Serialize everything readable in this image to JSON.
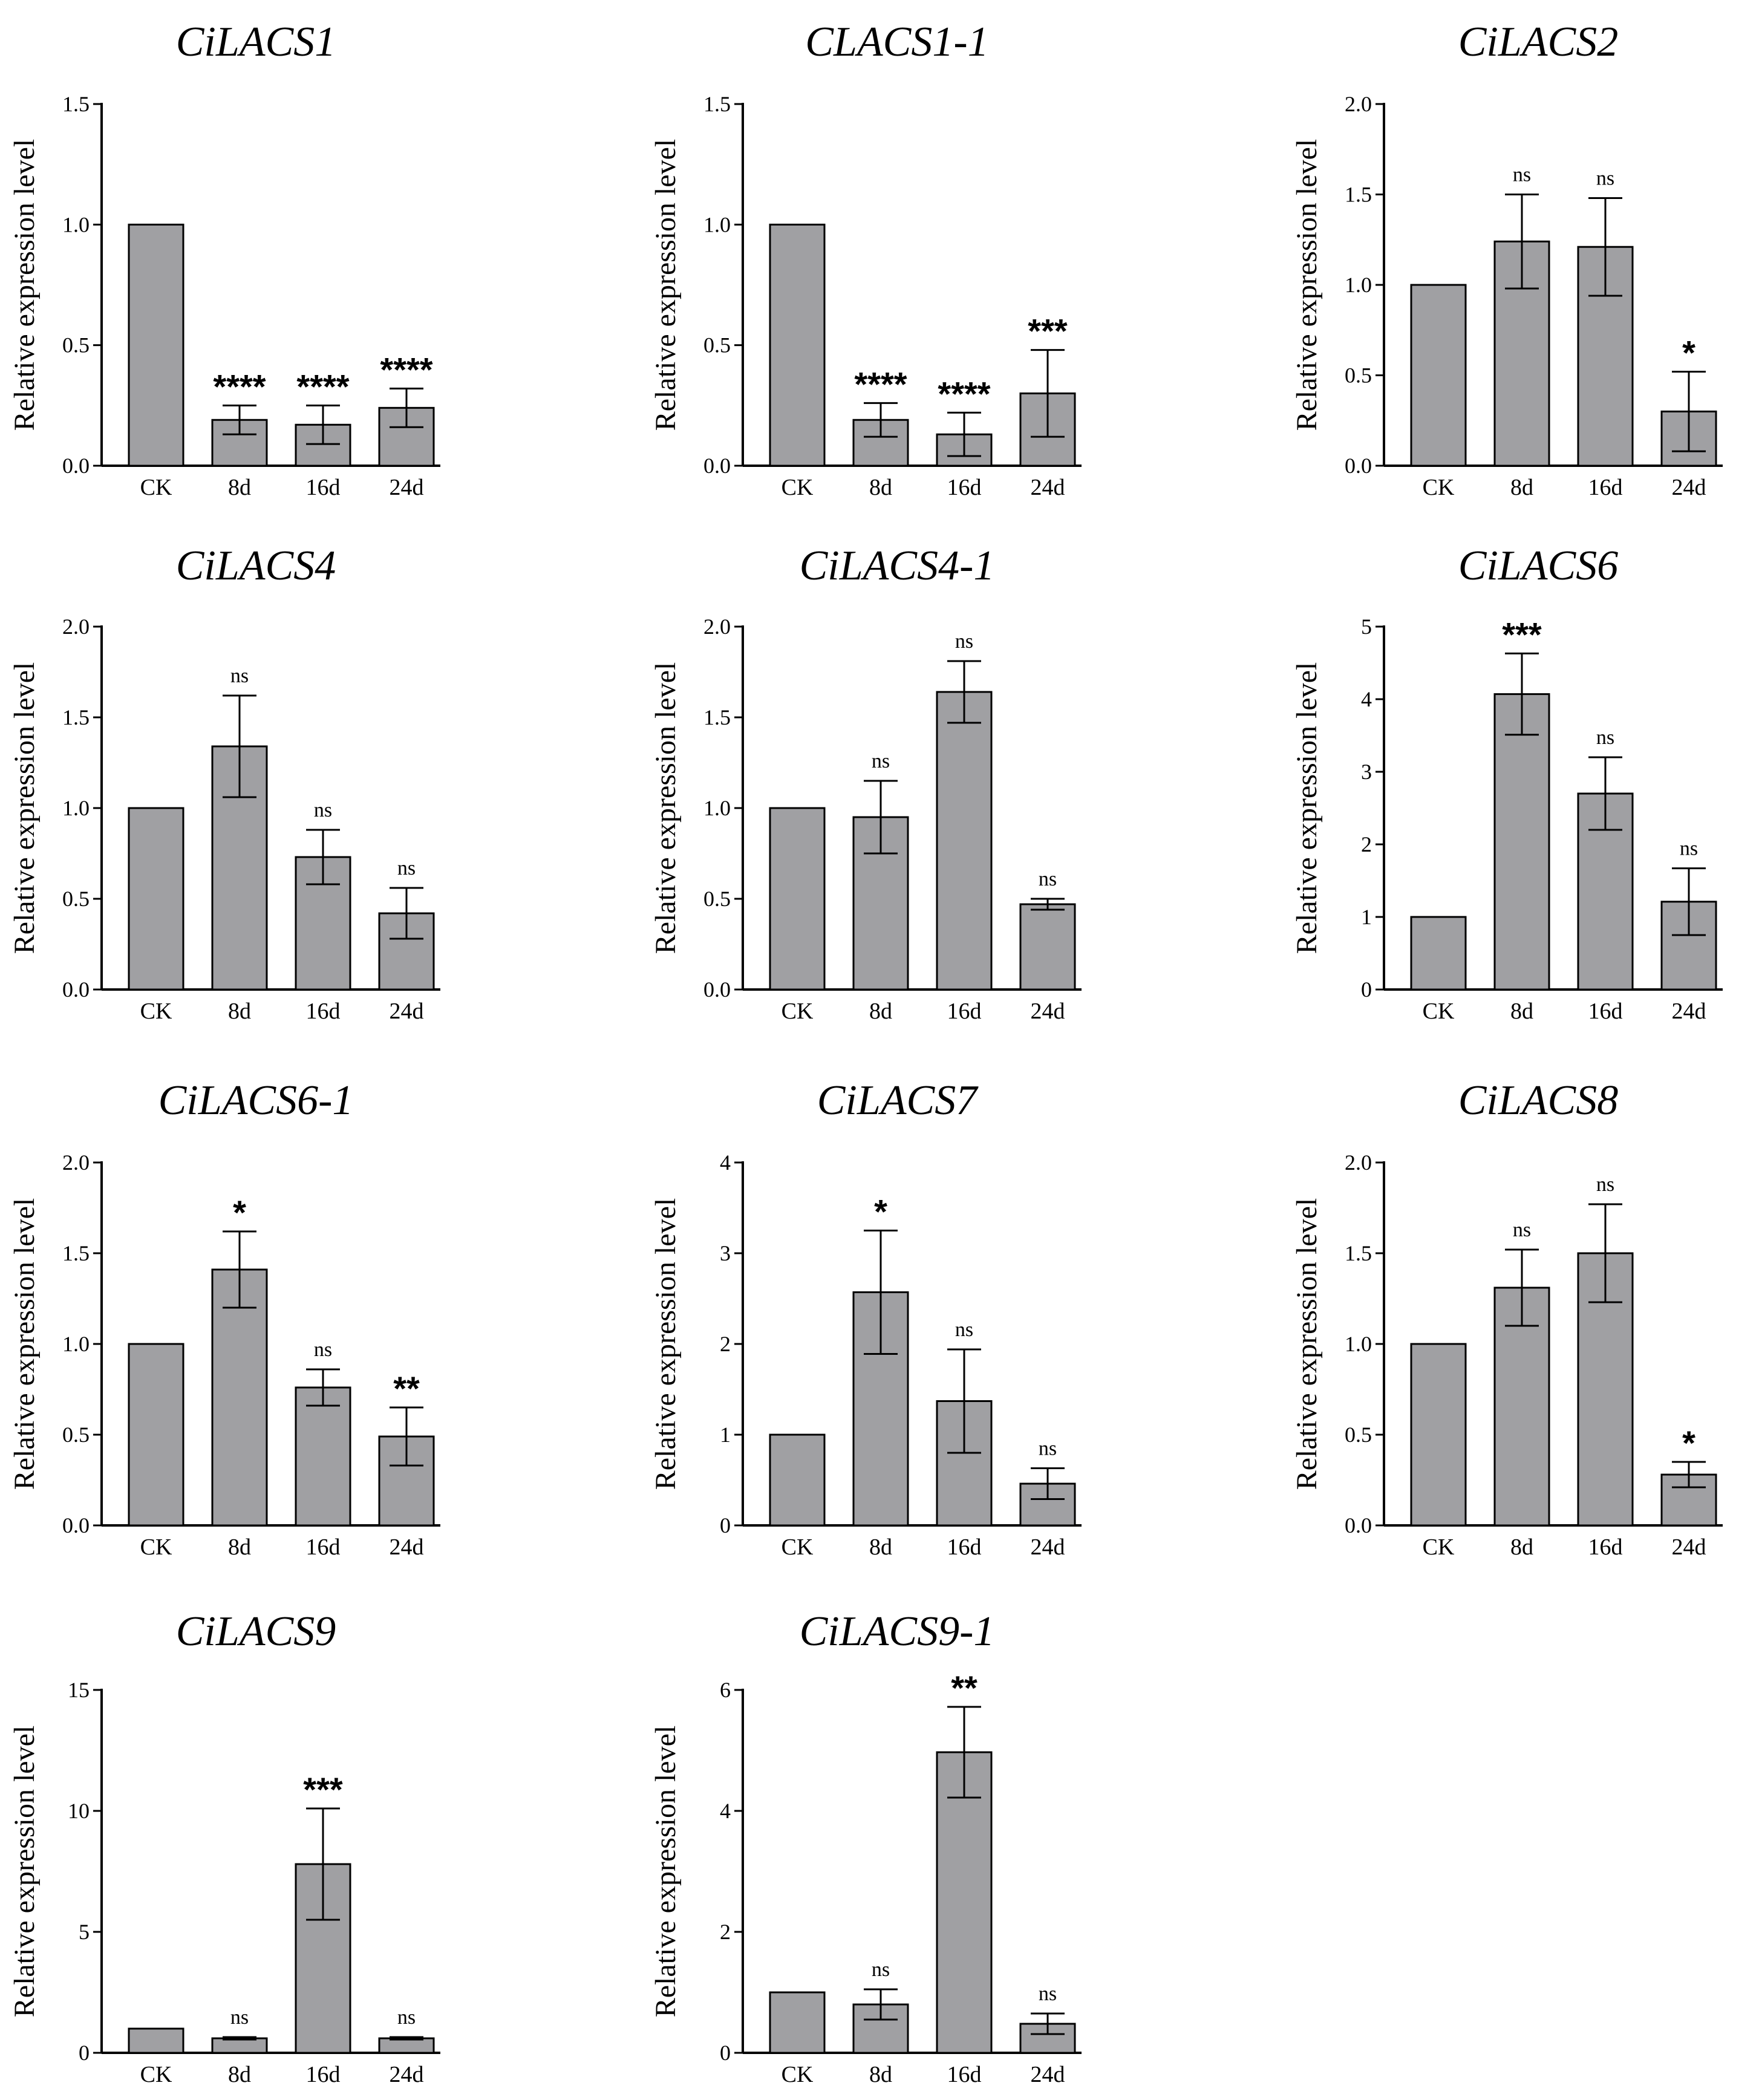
{
  "figure": {
    "ylabel": "Relative expression level"
  },
  "chart_data": [
    {
      "type": "bar",
      "title": "CiLACS1",
      "xlabel": "",
      "ylabel": "Relative expression level",
      "categories": [
        "CK",
        "8d",
        "16d",
        "24d"
      ],
      "values": [
        1.0,
        0.19,
        0.17,
        0.24
      ],
      "errors": [
        0,
        0.06,
        0.08,
        0.08
      ],
      "significance": [
        "",
        "****",
        "****",
        "****"
      ],
      "ylim": [
        0,
        1.5
      ],
      "yticks": [
        0.0,
        0.5,
        1.0,
        1.5
      ],
      "tick_labels": [
        "0.0",
        "0.5",
        "1.0",
        "1.5"
      ]
    },
    {
      "type": "bar",
      "title": "CLACS1-1",
      "xlabel": "",
      "ylabel": "Relative expression level",
      "categories": [
        "CK",
        "8d",
        "16d",
        "24d"
      ],
      "values": [
        1.0,
        0.19,
        0.13,
        0.3
      ],
      "errors": [
        0,
        0.07,
        0.09,
        0.18
      ],
      "significance": [
        "",
        "****",
        "****",
        "***"
      ],
      "ylim": [
        0,
        1.5
      ],
      "yticks": [
        0.0,
        0.5,
        1.0,
        1.5
      ],
      "tick_labels": [
        "0.0",
        "0.5",
        "1.0",
        "1.5"
      ]
    },
    {
      "type": "bar",
      "title": "CiLACS2",
      "xlabel": "",
      "ylabel": "Relative expression level",
      "categories": [
        "CK",
        "8d",
        "16d",
        "24d"
      ],
      "values": [
        1.0,
        1.24,
        1.21,
        0.3
      ],
      "errors": [
        0,
        0.26,
        0.27,
        0.22
      ],
      "significance": [
        "",
        "ns",
        "ns",
        "*"
      ],
      "ylim": [
        0,
        2.0
      ],
      "yticks": [
        0.0,
        0.5,
        1.0,
        1.5,
        2.0
      ],
      "tick_labels": [
        "0.0",
        "0.5",
        "1.0",
        "1.5",
        "2.0"
      ]
    },
    {
      "type": "bar",
      "title": "CiLACS4",
      "xlabel": "",
      "ylabel": "Relative expression level",
      "categories": [
        "CK",
        "8d",
        "16d",
        "24d"
      ],
      "values": [
        1.0,
        1.34,
        0.73,
        0.42
      ],
      "errors": [
        0,
        0.28,
        0.15,
        0.14
      ],
      "significance": [
        "",
        "ns",
        "ns",
        "ns"
      ],
      "ylim": [
        0,
        2.0
      ],
      "yticks": [
        0.0,
        0.5,
        1.0,
        1.5,
        2.0
      ],
      "tick_labels": [
        "0.0",
        "0.5",
        "1.0",
        "1.5",
        "2.0"
      ]
    },
    {
      "type": "bar",
      "title": "CiLACS4-1",
      "xlabel": "",
      "ylabel": "Relative expression level",
      "categories": [
        "CK",
        "8d",
        "16d",
        "24d"
      ],
      "values": [
        1.0,
        0.95,
        1.64,
        0.47
      ],
      "errors": [
        0,
        0.2,
        0.17,
        0.03
      ],
      "significance": [
        "",
        "ns",
        "ns",
        "ns"
      ],
      "ylim": [
        0,
        2.0
      ],
      "yticks": [
        0.0,
        0.5,
        1.0,
        1.5,
        2.0
      ],
      "tick_labels": [
        "0.0",
        "0.5",
        "1.0",
        "1.5",
        "2.0"
      ]
    },
    {
      "type": "bar",
      "title": "CiLACS6",
      "xlabel": "",
      "ylabel": "Relative expression level",
      "categories": [
        "CK",
        "8d",
        "16d",
        "24d"
      ],
      "values": [
        1.0,
        4.07,
        2.7,
        1.21
      ],
      "errors": [
        0,
        0.56,
        0.5,
        0.46
      ],
      "significance": [
        "",
        "***",
        "ns",
        "ns"
      ],
      "ylim": [
        0,
        5
      ],
      "yticks": [
        0,
        1,
        2,
        3,
        4,
        5
      ],
      "tick_labels": [
        "0",
        "1",
        "2",
        "3",
        "4",
        "5"
      ]
    },
    {
      "type": "bar",
      "title": "CiLACS6-1",
      "xlabel": "",
      "ylabel": "Relative expression level",
      "categories": [
        "CK",
        "8d",
        "16d",
        "24d"
      ],
      "values": [
        1.0,
        1.41,
        0.76,
        0.49
      ],
      "errors": [
        0,
        0.21,
        0.1,
        0.16
      ],
      "significance": [
        "",
        "*",
        "ns",
        "**"
      ],
      "ylim": [
        0,
        2.0
      ],
      "yticks": [
        0.0,
        0.5,
        1.0,
        1.5,
        2.0
      ],
      "tick_labels": [
        "0.0",
        "0.5",
        "1.0",
        "1.5",
        "2.0"
      ]
    },
    {
      "type": "bar",
      "title": "CiLACS7",
      "xlabel": "",
      "ylabel": "Relative expression level",
      "categories": [
        "CK",
        "8d",
        "16d",
        "24d"
      ],
      "values": [
        1.0,
        2.57,
        1.37,
        0.46
      ],
      "errors": [
        0,
        0.68,
        0.57,
        0.17
      ],
      "significance": [
        "",
        "*",
        "ns",
        "ns"
      ],
      "ylim": [
        0,
        4
      ],
      "yticks": [
        0,
        1,
        2,
        3,
        4
      ],
      "tick_labels": [
        "0",
        "1",
        "2",
        "3",
        "4"
      ]
    },
    {
      "type": "bar",
      "title": "CiLACS8",
      "xlabel": "",
      "ylabel": "Relative expression level",
      "categories": [
        "CK",
        "8d",
        "16d",
        "24d"
      ],
      "values": [
        1.0,
        1.31,
        1.5,
        0.28
      ],
      "errors": [
        0,
        0.21,
        0.27,
        0.07
      ],
      "significance": [
        "",
        "ns",
        "ns",
        "*"
      ],
      "ylim": [
        0,
        2.0
      ],
      "yticks": [
        0.0,
        0.5,
        1.0,
        1.5,
        2.0
      ],
      "tick_labels": [
        "0.0",
        "0.5",
        "1.0",
        "1.5",
        "2.0"
      ]
    },
    {
      "type": "bar",
      "title": "CiLACS9",
      "xlabel": "",
      "ylabel": "Relative expression level",
      "categories": [
        "CK",
        "8d",
        "16d",
        "24d"
      ],
      "values": [
        1.0,
        0.6,
        7.8,
        0.6
      ],
      "errors": [
        0,
        0.05,
        2.3,
        0.05
      ],
      "significance": [
        "",
        "ns",
        "***",
        "ns"
      ],
      "ylim": [
        0,
        15
      ],
      "yticks": [
        0,
        5,
        10,
        15
      ],
      "tick_labels": [
        "0",
        "5",
        "10",
        "15"
      ]
    },
    {
      "type": "bar",
      "title": "CiLACS9-1",
      "xlabel": "",
      "ylabel": "Relative expression level",
      "categories": [
        "CK",
        "8d",
        "16d",
        "24d"
      ],
      "values": [
        1.0,
        0.8,
        4.97,
        0.48
      ],
      "errors": [
        0,
        0.25,
        0.75,
        0.17
      ],
      "significance": [
        "",
        "ns",
        "**",
        "ns"
      ],
      "ylim": [
        0,
        6
      ],
      "yticks": [
        0,
        2,
        4,
        6
      ],
      "tick_labels": [
        "0",
        "2",
        "4",
        "6"
      ]
    }
  ]
}
